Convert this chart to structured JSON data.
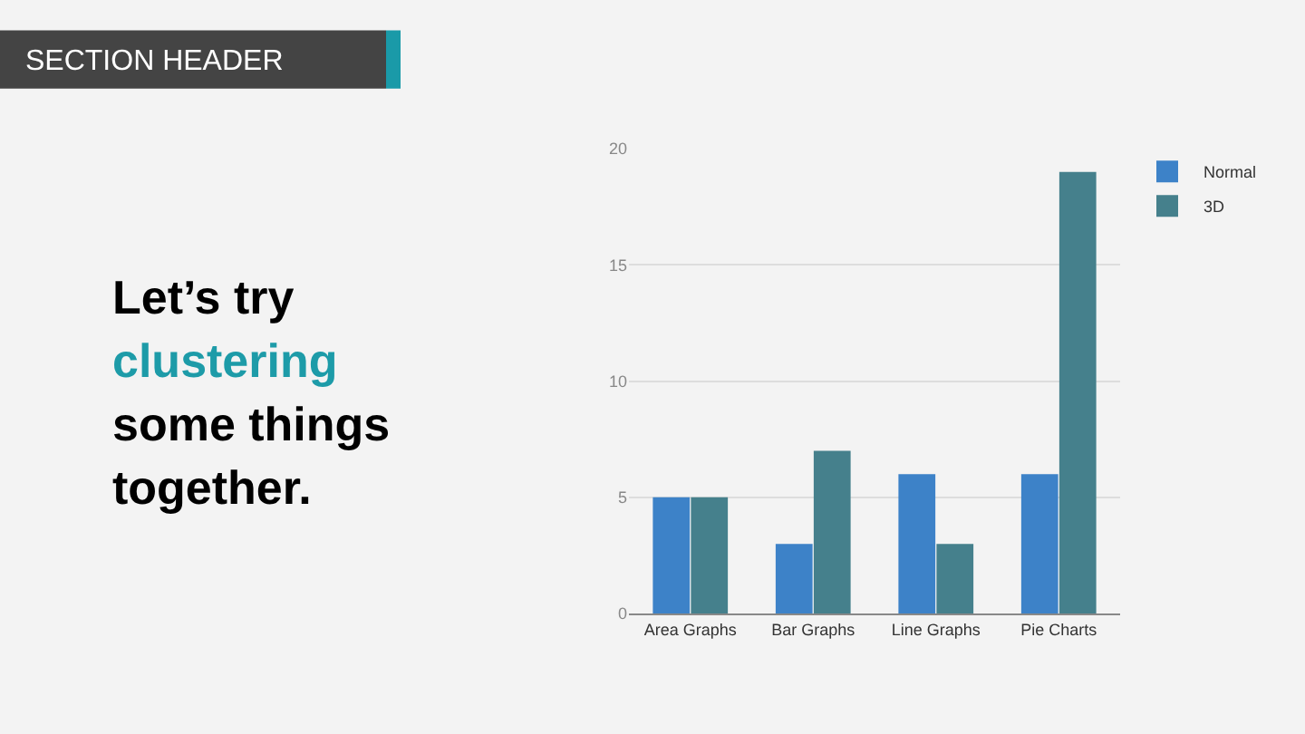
{
  "chart_data": {
    "type": "bar",
    "title": "SECTION HEADER",
    "annotations": [
      "Let’s try",
      "clustering",
      "some things",
      "together."
    ],
    "categories": [
      "Area Graphs",
      "Bar Graphs",
      "Line Graphs",
      "Pie Charts"
    ],
    "series": [
      {
        "name": "Normal",
        "color": "#3d82c8",
        "values": [
          5,
          3,
          6,
          6
        ]
      },
      {
        "name": "3D",
        "color": "#45808c",
        "values": [
          5,
          7,
          3,
          19
        ]
      }
    ],
    "ylim": [
      0,
      20
    ],
    "yticks": [
      0,
      5,
      10,
      15,
      20
    ],
    "grid": "y",
    "legend": "top right"
  }
}
